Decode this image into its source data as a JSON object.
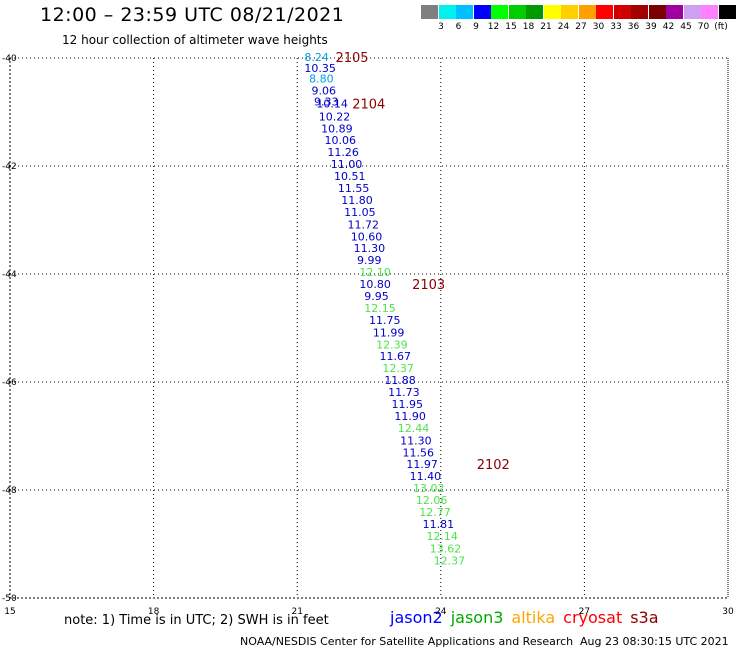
{
  "header": {
    "title": "12:00 – 23:59 UTC 08/21/2021",
    "subtitle": "12 hour collection of altimeter wave heights"
  },
  "colorbar": {
    "colors": [
      "#7f7f7f",
      "#00f0f0",
      "#00c0ff",
      "#0000ff",
      "#00ff00",
      "#00cc00",
      "#009a00",
      "#ffff00",
      "#ffd000",
      "#ffa000",
      "#ff0000",
      "#d00000",
      "#a00000",
      "#7a0000",
      "#a000a0",
      "#d0a0f0",
      "#ff80ff",
      "#000000"
    ],
    "labels": [
      "3",
      "6",
      "9",
      "12",
      "15",
      "18",
      "21",
      "24",
      "27",
      "30",
      "33",
      "36",
      "39",
      "42",
      "45",
      "70",
      "(ft)"
    ]
  },
  "chart_data": {
    "type": "scatter",
    "title": "12:00 – 23:59 UTC 08/21/2021",
    "xlim": [
      15,
      30
    ],
    "ylim": [
      -50,
      -40
    ],
    "xticks": [
      "15",
      "18",
      "21",
      "24",
      "27",
      "30"
    ],
    "yticks": [
      "-40",
      "-42",
      "-44",
      "-46",
      "-48",
      "-50"
    ],
    "grid": true,
    "points": [
      {
        "lat": -40.0,
        "lon": 21.15,
        "label": "8.24",
        "series": "jason2-light"
      },
      {
        "lat": -40.2,
        "lon": 21.15,
        "label": "10.35",
        "series": "jason2"
      },
      {
        "lat": -40.4,
        "lon": 21.25,
        "label": "8.80",
        "series": "jason2-light"
      },
      {
        "lat": -40.62,
        "lon": 21.3,
        "label": "9.06",
        "series": "jason2"
      },
      {
        "lat": -40.82,
        "lon": 21.35,
        "label": "9.33",
        "series": "jason2"
      },
      {
        "lat": -40.86,
        "lon": 21.4,
        "label": "10.14",
        "series": "jason2"
      },
      {
        "lat": -41.1,
        "lon": 21.45,
        "label": "10.22",
        "series": "jason2"
      },
      {
        "lat": -41.32,
        "lon": 21.5,
        "label": "10.89",
        "series": "jason2"
      },
      {
        "lat": -41.54,
        "lon": 21.57,
        "label": "10.06",
        "series": "jason2"
      },
      {
        "lat": -41.76,
        "lon": 21.63,
        "label": "11.26",
        "series": "jason2"
      },
      {
        "lat": -41.98,
        "lon": 21.7,
        "label": "11.00",
        "series": "jason2"
      },
      {
        "lat": -42.2,
        "lon": 21.77,
        "label": "10.51",
        "series": "jason2"
      },
      {
        "lat": -42.43,
        "lon": 21.85,
        "label": "11.55",
        "series": "jason2"
      },
      {
        "lat": -42.65,
        "lon": 21.92,
        "label": "11.80",
        "series": "jason2"
      },
      {
        "lat": -42.87,
        "lon": 21.98,
        "label": "11.05",
        "series": "jason2"
      },
      {
        "lat": -43.1,
        "lon": 22.05,
        "label": "11.72",
        "series": "jason2"
      },
      {
        "lat": -43.32,
        "lon": 22.12,
        "label": "10.60",
        "series": "jason2"
      },
      {
        "lat": -43.54,
        "lon": 22.18,
        "label": "11.30",
        "series": "jason2"
      },
      {
        "lat": -43.76,
        "lon": 22.25,
        "label": "9.99",
        "series": "jason2"
      },
      {
        "lat": -43.98,
        "lon": 22.3,
        "label": "12.10",
        "series": "jason3"
      },
      {
        "lat": -44.2,
        "lon": 22.3,
        "label": "10.80",
        "series": "jason2"
      },
      {
        "lat": -44.43,
        "lon": 22.4,
        "label": "9.95",
        "series": "jason2"
      },
      {
        "lat": -44.65,
        "lon": 22.4,
        "label": "12.15",
        "series": "jason3"
      },
      {
        "lat": -44.87,
        "lon": 22.5,
        "label": "11.75",
        "series": "jason2"
      },
      {
        "lat": -45.1,
        "lon": 22.58,
        "label": "11.99",
        "series": "jason2"
      },
      {
        "lat": -45.32,
        "lon": 22.65,
        "label": "12.39",
        "series": "jason3"
      },
      {
        "lat": -45.54,
        "lon": 22.72,
        "label": "11.67",
        "series": "jason2"
      },
      {
        "lat": -45.76,
        "lon": 22.78,
        "label": "12.37",
        "series": "jason3"
      },
      {
        "lat": -45.98,
        "lon": 22.82,
        "label": "11.88",
        "series": "jason2"
      },
      {
        "lat": -46.2,
        "lon": 22.9,
        "label": "11.73",
        "series": "jason2"
      },
      {
        "lat": -46.43,
        "lon": 22.97,
        "label": "11.95",
        "series": "jason2"
      },
      {
        "lat": -46.65,
        "lon": 23.03,
        "label": "11.90",
        "series": "jason2"
      },
      {
        "lat": -46.87,
        "lon": 23.1,
        "label": "12.44",
        "series": "jason3"
      },
      {
        "lat": -47.1,
        "lon": 23.15,
        "label": "11.30",
        "series": "jason2"
      },
      {
        "lat": -47.32,
        "lon": 23.2,
        "label": "11.56",
        "series": "jason2"
      },
      {
        "lat": -47.54,
        "lon": 23.28,
        "label": "11.97",
        "series": "jason2"
      },
      {
        "lat": -47.76,
        "lon": 23.35,
        "label": "11.40",
        "series": "jason2"
      },
      {
        "lat": -47.98,
        "lon": 23.42,
        "label": "13.02",
        "series": "jason3"
      },
      {
        "lat": -48.2,
        "lon": 23.48,
        "label": "12.06",
        "series": "jason3"
      },
      {
        "lat": -48.43,
        "lon": 23.55,
        "label": "12.77",
        "series": "jason3"
      },
      {
        "lat": -48.65,
        "lon": 23.62,
        "label": "11.81",
        "series": "jason2"
      },
      {
        "lat": -48.87,
        "lon": 23.7,
        "label": "12.14",
        "series": "jason3"
      },
      {
        "lat": -49.1,
        "lon": 23.77,
        "label": "13.62",
        "series": "jason3"
      },
      {
        "lat": -49.32,
        "lon": 23.85,
        "label": "12.37",
        "series": "jason3"
      }
    ],
    "time_labels": [
      {
        "lat": -40.0,
        "lon": 21.8,
        "label": "2105"
      },
      {
        "lat": -40.86,
        "lon": 22.15,
        "label": "2104"
      },
      {
        "lat": -44.2,
        "lon": 23.4,
        "label": "2103"
      },
      {
        "lat": -47.54,
        "lon": 24.75,
        "label": "2102"
      }
    ],
    "series_colors": {
      "jason2": "#0000c8",
      "jason2-light": "#00a0e0",
      "jason3": "#4fe24f",
      "time": "#8b0000"
    }
  },
  "note": "note:  1) Time is in UTC; 2) SWH is in feet",
  "legend": [
    {
      "name": "jason2",
      "color": "#0000ff"
    },
    {
      "name": "jason3",
      "color": "#00aa00"
    },
    {
      "name": "altika",
      "color": "#ffa500"
    },
    {
      "name": "cryosat",
      "color": "#ff0000"
    },
    {
      "name": "s3a",
      "color": "#8b0000"
    }
  ],
  "footer": {
    "credit": "NOAA/NESDIS Center for Satellite Applications and Research",
    "timestamp": "Aug 23 08:30:15 UTC 2021"
  }
}
